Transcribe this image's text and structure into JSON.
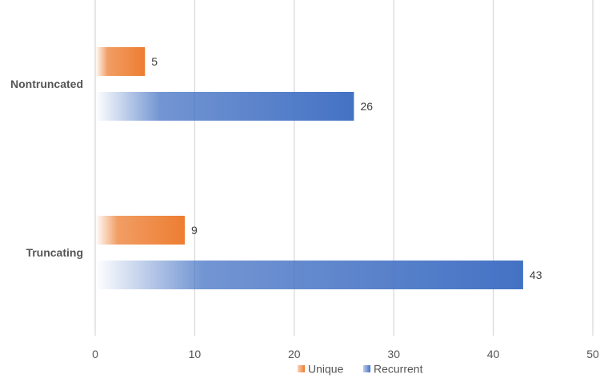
{
  "chart_data": {
    "type": "bar",
    "orientation": "horizontal",
    "categories": [
      "Nontruncated",
      "Truncating"
    ],
    "series": [
      {
        "name": "Unique",
        "values": [
          5,
          9
        ],
        "color": "#ED7D31"
      },
      {
        "name": "Recurrent",
        "values": [
          26,
          43
        ],
        "color": "#4472C4"
      }
    ],
    "xlim": [
      0,
      50
    ],
    "x_ticks": [
      0,
      10,
      20,
      30,
      40,
      50
    ],
    "title": "",
    "xlabel": "",
    "ylabel": "",
    "grid": true,
    "legend": "bottom",
    "data_labels": true,
    "bar_fill": "gradient from white to series color"
  }
}
